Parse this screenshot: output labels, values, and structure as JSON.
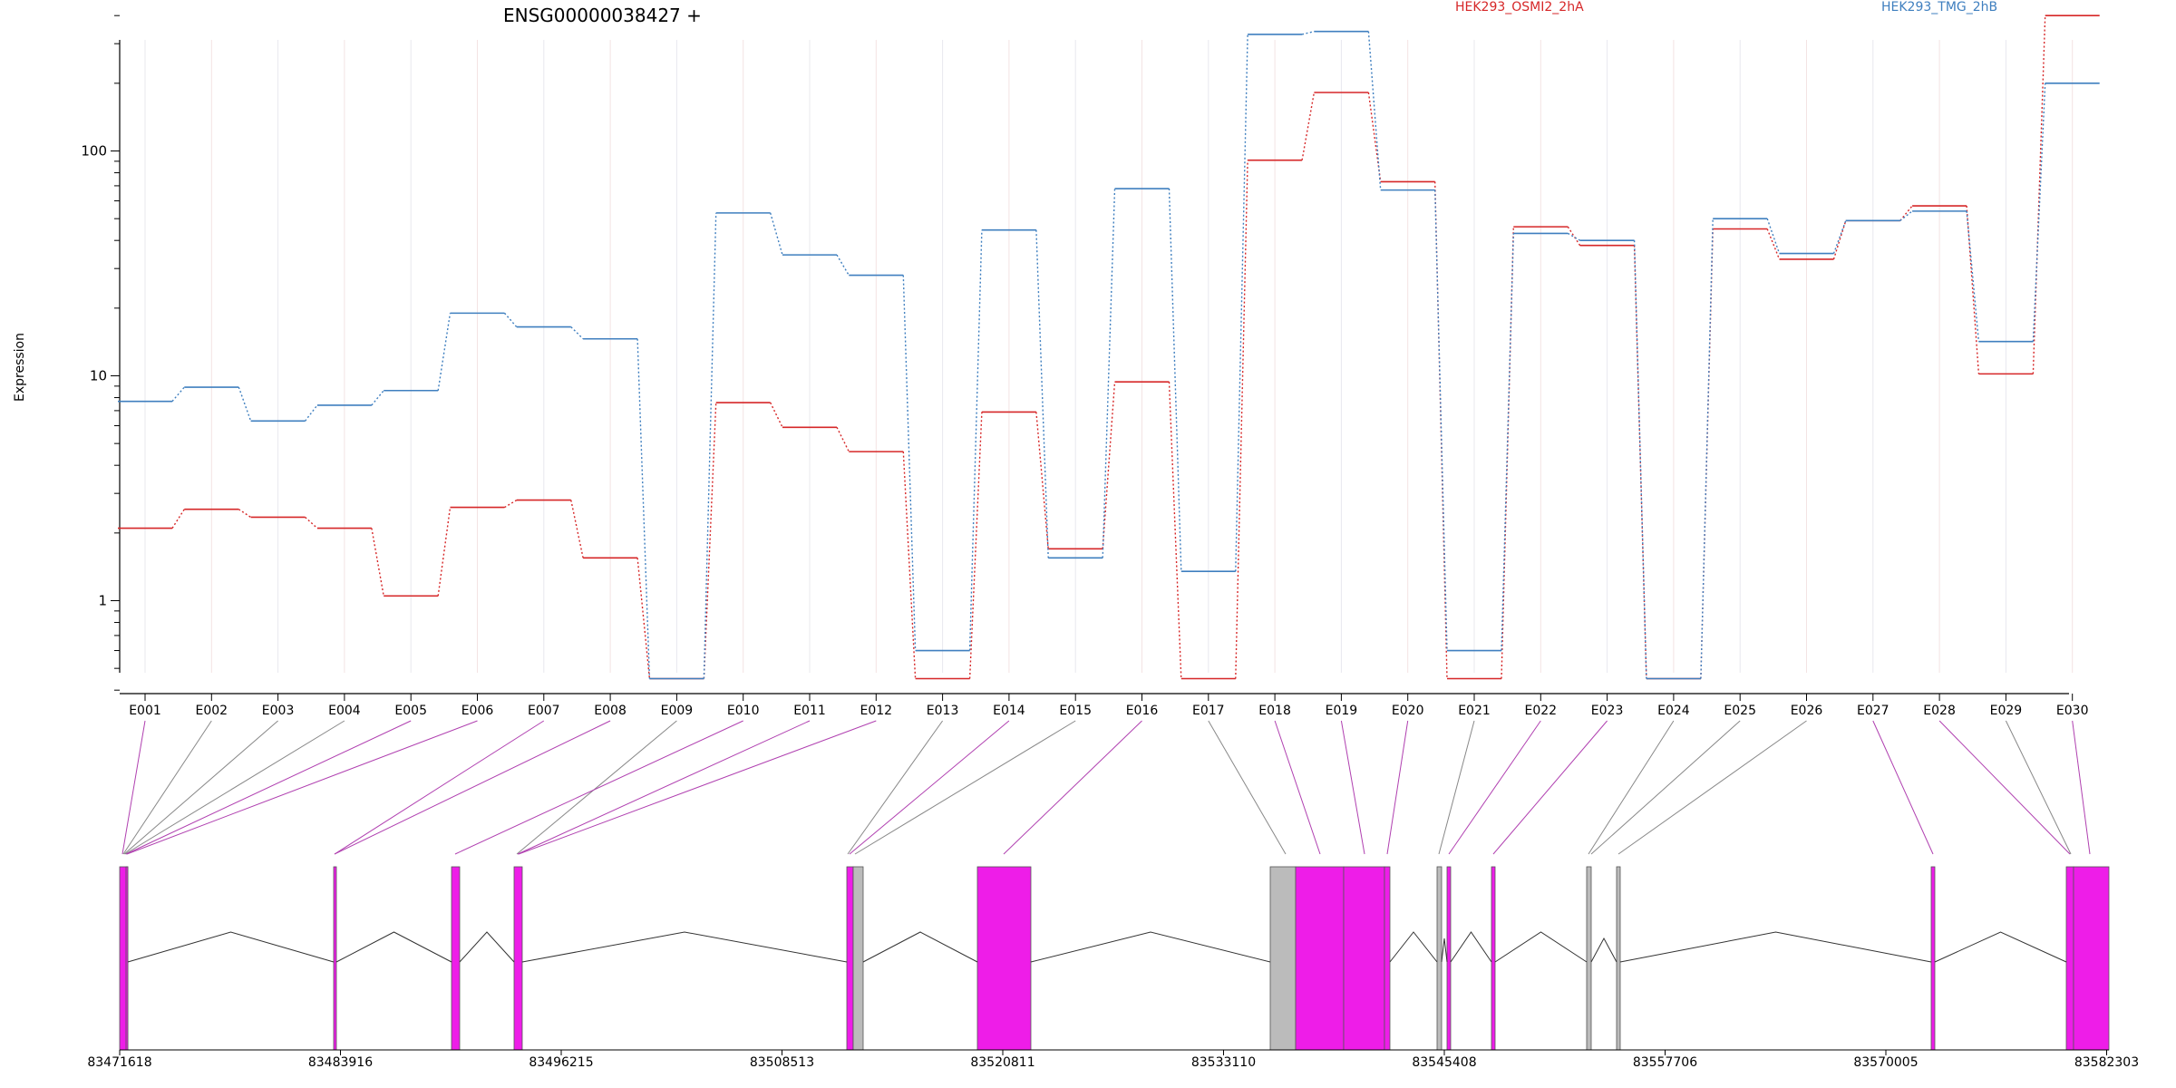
{
  "chart_data": {
    "type": "line",
    "title": "ENSG00000038427 +",
    "ylabel": "Expression",
    "yscale": "log",
    "ylim": [
      0.4,
      550
    ],
    "yticks": [
      1,
      10,
      100
    ],
    "yticks_text": [
      "1",
      "10",
      "100"
    ],
    "grid": "vertical, faint, at each exon",
    "legend_position": "top, inline",
    "categories": [
      "E001",
      "E002",
      "E003",
      "E004",
      "E005",
      "E006",
      "E007",
      "E008",
      "E009",
      "E010",
      "E011",
      "E012",
      "E013",
      "E014",
      "E015",
      "E016",
      "E017",
      "E018",
      "E019",
      "E020",
      "E021",
      "E022",
      "E023",
      "E024",
      "E025",
      "E026",
      "E027",
      "E028",
      "E029",
      "E030"
    ],
    "series": [
      {
        "name": "HEK293_OSMI2_2hA",
        "color": "#d62728",
        "values": [
          2.1,
          2.55,
          2.35,
          2.1,
          1.05,
          2.6,
          2.8,
          1.55,
          0.45,
          7.6,
          5.9,
          4.6,
          0.45,
          6.9,
          1.7,
          9.4,
          0.45,
          91,
          182,
          73,
          0.45,
          46,
          38,
          0.45,
          45,
          33,
          49,
          57,
          10.2,
          400
        ]
      },
      {
        "name": "HEK293_TMG_2hB",
        "color": "#3f7fbf",
        "values": [
          7.7,
          8.9,
          6.3,
          7.4,
          8.6,
          19,
          16.5,
          14.6,
          0.45,
          53,
          34.5,
          28,
          0.6,
          44.5,
          1.55,
          68,
          1.35,
          330,
          340,
          67,
          0.6,
          43,
          40,
          0.45,
          50,
          35,
          49,
          54,
          14.2,
          200
        ]
      }
    ],
    "genomic_axis": {
      "tick_labels": [
        "83471618",
        "83483916",
        "83496215",
        "83508513",
        "83520811",
        "83533110",
        "83545408",
        "83557706",
        "83570005",
        "83582303"
      ],
      "exon_color": "#ee1de8",
      "intron_color": "#bbbbbb"
    }
  }
}
